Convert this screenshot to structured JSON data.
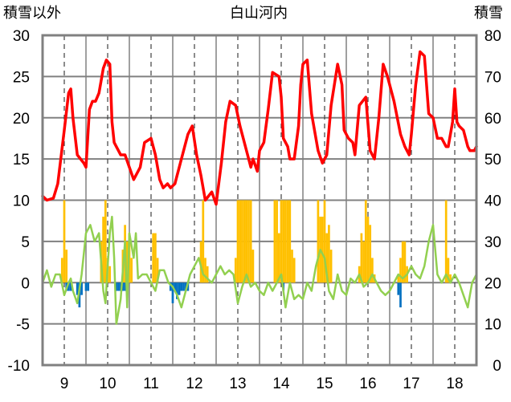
{
  "chart_data": {
    "type": "line",
    "title": "白山河内",
    "ylabel_left": "積雪以外",
    "ylabel_right": "積雪",
    "x_ticks": [
      "9",
      "10",
      "11",
      "12",
      "13",
      "14",
      "15",
      "16",
      "17",
      "18"
    ],
    "xlim": [
      8.5,
      18.5
    ],
    "ylim_left": [
      -10,
      30
    ],
    "yticks_left": [
      -10,
      -5,
      0,
      5,
      10,
      15,
      20,
      25,
      30
    ],
    "ylim_right": [
      0,
      80
    ],
    "yticks_right": [
      0,
      10,
      20,
      30,
      40,
      50,
      60,
      70,
      80
    ],
    "grid": true,
    "series": [
      {
        "axis": "right",
        "style": "line",
        "color": "#ff0000",
        "x": [
          8.5,
          8.6,
          8.75,
          8.85,
          9.0,
          9.1,
          9.15,
          9.2,
          9.3,
          9.45,
          9.5,
          9.58,
          9.65,
          9.72,
          9.8,
          9.9,
          9.97,
          10.05,
          10.1,
          10.15,
          10.3,
          10.4,
          10.5,
          10.6,
          10.75,
          10.85,
          11.0,
          11.1,
          11.2,
          11.28,
          11.38,
          11.45,
          11.55,
          11.7,
          11.85,
          11.95,
          12.05,
          12.15,
          12.25,
          12.4,
          12.5,
          12.62,
          12.72,
          12.82,
          12.95,
          13.05,
          13.2,
          13.3,
          13.35,
          13.45,
          13.5,
          13.6,
          13.7,
          13.8,
          13.95,
          14.0,
          14.05,
          14.15,
          14.2,
          14.3,
          14.4,
          14.45,
          14.5,
          14.6,
          14.7,
          14.85,
          14.95,
          15.05,
          15.15,
          15.3,
          15.4,
          15.45,
          15.55,
          15.65,
          15.7,
          15.8,
          15.95,
          16.05,
          16.15,
          16.25,
          16.35,
          16.45,
          16.6,
          16.75,
          16.85,
          16.95,
          17.0,
          17.1,
          17.2,
          17.3,
          17.4,
          17.5,
          17.6,
          17.7,
          17.8,
          17.85,
          17.95,
          18.0,
          18.05,
          18.1,
          18.2,
          18.3,
          18.35,
          18.45,
          18.5
        ],
        "y": [
          41,
          40,
          40.5,
          44,
          57,
          66,
          67,
          60,
          51,
          49,
          48,
          62,
          64,
          64,
          66,
          72,
          74,
          73,
          59,
          54,
          51,
          51,
          48,
          45,
          48,
          54,
          55,
          51,
          45,
          43,
          44,
          43,
          44,
          50,
          56,
          58,
          51,
          46,
          40,
          42,
          39,
          49,
          59,
          64,
          63,
          58,
          52,
          48,
          50,
          47,
          52,
          54,
          62,
          71,
          70,
          65,
          55,
          53,
          50,
          50,
          58,
          68,
          73,
          74,
          61,
          52,
          49,
          51,
          63,
          73,
          68,
          57,
          55,
          54,
          51,
          63,
          65,
          52,
          50,
          60,
          73,
          70,
          64,
          56,
          53,
          51,
          56,
          68,
          76,
          75,
          61,
          60,
          55,
          55,
          53,
          53,
          59,
          67,
          59,
          58,
          57,
          53,
          52,
          52,
          53
        ]
      },
      {
        "axis": "left",
        "style": "line",
        "color": "#92d050",
        "x": [
          8.5,
          8.6,
          8.7,
          8.8,
          8.9,
          9.0,
          9.1,
          9.15,
          9.2,
          9.3,
          9.4,
          9.5,
          9.6,
          9.7,
          9.8,
          9.9,
          9.95,
          10.0,
          10.05,
          10.1,
          10.15,
          10.2,
          10.3,
          10.4,
          10.45,
          10.5,
          10.6,
          10.65,
          10.7,
          10.8,
          10.9,
          11.0,
          11.1,
          11.2,
          11.3,
          11.4,
          11.5,
          11.6,
          11.7,
          11.8,
          11.9,
          12.0,
          12.1,
          12.2,
          12.3,
          12.4,
          12.5,
          12.6,
          12.7,
          12.8,
          12.9,
          13.0,
          13.1,
          13.2,
          13.3,
          13.4,
          13.5,
          13.6,
          13.7,
          13.8,
          13.9,
          14.0,
          14.1,
          14.2,
          14.3,
          14.4,
          14.5,
          14.6,
          14.7,
          14.8,
          14.9,
          15.0,
          15.1,
          15.2,
          15.3,
          15.4,
          15.5,
          15.6,
          15.7,
          15.8,
          15.9,
          16.0,
          16.1,
          16.2,
          16.3,
          16.4,
          16.5,
          16.6,
          16.7,
          16.8,
          16.9,
          17.0,
          17.1,
          17.2,
          17.3,
          17.4,
          17.5,
          17.6,
          17.7,
          17.8,
          17.9,
          18.0,
          18.1,
          18.2,
          18.3,
          18.4,
          18.5
        ],
        "y": [
          0,
          1.5,
          -0.5,
          1,
          1,
          -1.5,
          0,
          0.5,
          -1,
          -2.5,
          1,
          6,
          7,
          5,
          6,
          -1,
          -2.5,
          2,
          6,
          8,
          3,
          -5,
          -2,
          5,
          -3,
          6,
          3,
          6,
          0.5,
          1,
          1,
          0,
          -1,
          1.5,
          1.5,
          0,
          -0.5,
          -1.5,
          -3,
          -1,
          1,
          2,
          3,
          1,
          0.5,
          0,
          1,
          2,
          1,
          1.5,
          1,
          -2.5,
          -0.5,
          1,
          -0.5,
          0,
          -1,
          -1.5,
          0,
          -1,
          0,
          1,
          -3,
          0,
          -2,
          -1.5,
          -2,
          0,
          -1,
          2,
          4,
          3,
          -1,
          -2,
          1,
          -1,
          -1.5,
          0.5,
          0,
          1,
          -0.5,
          0,
          1,
          0,
          -1,
          -1.5,
          -1,
          0,
          1,
          0.5,
          1,
          2,
          1,
          0.5,
          2,
          5,
          7,
          1,
          0,
          1,
          0,
          1,
          0,
          -1.5,
          -3,
          0,
          1
        ]
      },
      {
        "axis": "left",
        "style": "bar",
        "color": "#ffc000",
        "x": [
          8.95,
          9.0,
          9.05,
          9.85,
          9.9,
          9.95,
          10.0,
          10.05,
          10.35,
          10.4,
          10.45,
          10.5,
          10.55,
          11.05,
          11.1,
          11.15,
          12.15,
          12.2,
          12.25,
          12.3,
          12.95,
          13.0,
          13.05,
          13.1,
          13.15,
          13.2,
          13.25,
          13.3,
          13.35,
          13.85,
          13.9,
          13.95,
          14.0,
          14.05,
          14.1,
          14.15,
          14.2,
          14.25,
          14.3,
          14.85,
          14.9,
          14.95,
          15.0,
          15.05,
          15.1,
          15.15,
          15.8,
          15.85,
          15.9,
          15.95,
          16.0,
          16.05,
          16.1,
          16.15,
          16.7,
          16.75,
          16.8,
          16.85,
          16.9,
          17.8,
          17.85,
          17.9
        ],
        "values": [
          3,
          10,
          4,
          5,
          8,
          10,
          3,
          2,
          4,
          7,
          5,
          6,
          3,
          6,
          6,
          3,
          5,
          10,
          3,
          2,
          3,
          10,
          10,
          10,
          10,
          10,
          10,
          10,
          4,
          10,
          10,
          6,
          10,
          10,
          10,
          10,
          10,
          4,
          3,
          10,
          8,
          8,
          10,
          6,
          7,
          4,
          2,
          6,
          5,
          10,
          8,
          7,
          3,
          1,
          1,
          3,
          5,
          5,
          2,
          10,
          3,
          1
        ]
      },
      {
        "axis": "left",
        "style": "bar",
        "color": "#0070c0",
        "x": [
          9.05,
          9.1,
          9.15,
          9.3,
          9.35,
          9.4,
          9.5,
          9.55,
          10.2,
          10.25,
          10.3,
          10.35,
          10.4,
          10.45,
          11.45,
          11.5,
          11.55,
          11.6,
          11.65,
          11.7,
          11.75,
          11.8,
          11.85,
          14.05,
          16.7,
          16.75
        ],
        "values": [
          -1,
          -1,
          -1,
          -1.5,
          -3,
          -1.5,
          -1,
          -1,
          -1,
          -1,
          -1,
          -1,
          -1,
          -1,
          -1,
          -2.5,
          -1,
          -2,
          -1.5,
          -1,
          -1,
          -1,
          -1,
          -1,
          -1.5,
          -3
        ]
      }
    ]
  }
}
